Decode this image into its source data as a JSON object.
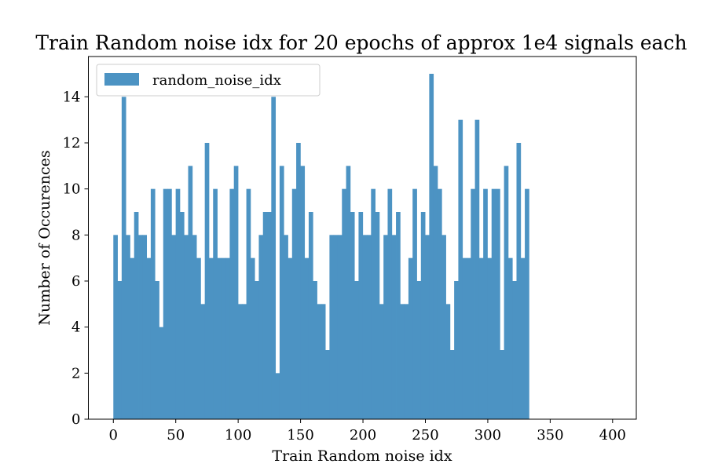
{
  "chart_data": {
    "type": "bar",
    "title": "Train Random noise idx for 20 epochs of approx 1e4 signals each",
    "xlabel": "Train Random noise idx",
    "ylabel": "Number of Occurences",
    "xlim": [
      -20,
      419
    ],
    "ylim": [
      0,
      15.75
    ],
    "xticks": [
      0,
      50,
      100,
      150,
      200,
      250,
      300,
      350,
      400
    ],
    "yticks": [
      0,
      2,
      4,
      6,
      8,
      10,
      12,
      14
    ],
    "bin_start": 0,
    "bin_width": 3.33,
    "color": "#4c93c3",
    "grid": false,
    "legend_position": "top-left",
    "series": [
      {
        "name": "random_noise_idx",
        "values": [
          8,
          6,
          14,
          8,
          7,
          9,
          8,
          8,
          7,
          10,
          6,
          4,
          10,
          10,
          8,
          10,
          9,
          8,
          11,
          8,
          7,
          5,
          12,
          7,
          10,
          7,
          7,
          7,
          10,
          11,
          5,
          5,
          10,
          7,
          6,
          8,
          9,
          9,
          14,
          2,
          11,
          8,
          7,
          10,
          12,
          11,
          7,
          9,
          6,
          5,
          5,
          3,
          8,
          8,
          8,
          10,
          11,
          9,
          6,
          9,
          8,
          8,
          10,
          9,
          5,
          8,
          10,
          8,
          9,
          5,
          5,
          7,
          10,
          6,
          9,
          8,
          15,
          11,
          10,
          8,
          5,
          3,
          6,
          13,
          7,
          7,
          10,
          13,
          7,
          10,
          7,
          10,
          10,
          3,
          11,
          7,
          6,
          12,
          7,
          10
        ]
      }
    ]
  }
}
